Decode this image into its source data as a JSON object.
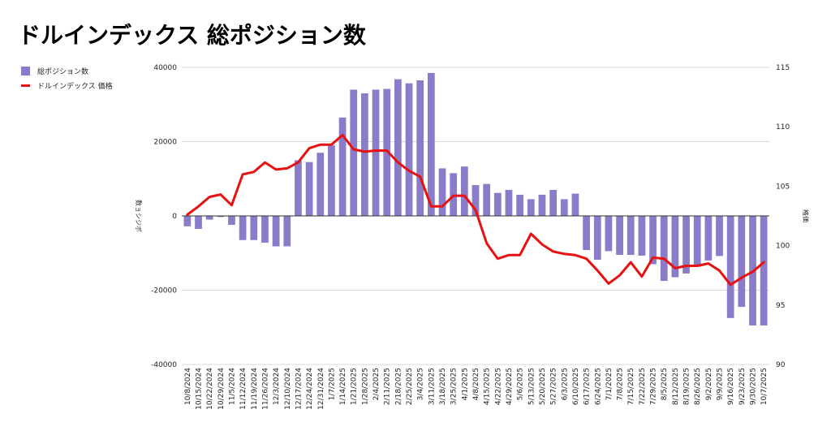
{
  "title": "ドルインデックス 総ポジション数",
  "colors": {
    "bar": "#8a7cc8",
    "line": "#e81010",
    "grid": "#d9d9d9"
  },
  "chart_data": {
    "type": "bar+line",
    "title": "ドルインデックス 総ポジション数",
    "legend_position": "top-left",
    "grid": true,
    "categories": [
      "10/8/2024",
      "10/15/2024",
      "10/22/2024",
      "10/29/2024",
      "11/5/2024",
      "11/12/2024",
      "11/19/2024",
      "11/26/2024",
      "12/3/2024",
      "12/10/2024",
      "12/17/2024",
      "12/24/2024",
      "12/31/2024",
      "1/7/2025",
      "1/14/2025",
      "1/21/2025",
      "1/28/2025",
      "2/4/2025",
      "2/11/2025",
      "2/18/2025",
      "2/25/2025",
      "3/4/2025",
      "3/11/2025",
      "3/18/2025",
      "3/25/2025",
      "4/1/2025",
      "4/8/2025",
      "4/15/2025",
      "4/22/2025",
      "4/29/2025",
      "5/6/2025",
      "5/13/2025",
      "5/20/2025",
      "5/27/2025",
      "6/3/2025",
      "6/10/2025",
      "6/17/2025",
      "6/24/2025",
      "7/1/2025",
      "7/8/2025",
      "7/15/2025",
      "7/22/2025",
      "7/29/2025",
      "8/5/2025",
      "8/12/2025",
      "8/19/2025",
      "8/26/2025",
      "9/2/2025",
      "9/9/2025",
      "9/16/2025",
      "9/23/2025",
      "9/30/2025",
      "10/7/2025"
    ],
    "left_axis": {
      "label": "数ョシジポ",
      "ylim": [
        -40000,
        40000
      ],
      "ticks": [
        "40000",
        "20000",
        "0",
        "-20000",
        "-40000"
      ],
      "tick_values": [
        40000,
        20000,
        0,
        -20000,
        -40000
      ]
    },
    "right_axis": {
      "label": "格価",
      "ylim": [
        90,
        115
      ],
      "ticks": [
        "115",
        "110",
        "105",
        "100",
        "95",
        "90"
      ],
      "tick_values": [
        115,
        110,
        105,
        100,
        95,
        90
      ]
    },
    "series": [
      {
        "name": "総ポジション数",
        "type": "bar",
        "axis": "left",
        "values": [
          -2800,
          -3500,
          -1000,
          -300,
          -2400,
          -6500,
          -6500,
          -7200,
          -8200,
          -8200,
          15000,
          14500,
          17000,
          19000,
          26500,
          34000,
          33000,
          34000,
          34200,
          36800,
          35700,
          36500,
          38500,
          12800,
          11500,
          13300,
          8300,
          8600,
          6200,
          7000,
          5700,
          4500,
          5700,
          7000,
          4500,
          6000,
          -9200,
          -11800,
          -9500,
          -10500,
          -10500,
          -10700,
          -13000,
          -17500,
          -16500,
          -15500,
          -13700,
          -12000,
          -10800,
          -27500,
          -24500,
          -29500,
          -29500
        ]
      },
      {
        "name": "ドルインデックス 価格",
        "type": "line",
        "axis": "right",
        "values": [
          102.6,
          103.3,
          104.1,
          104.3,
          103.4,
          106.0,
          106.2,
          107.0,
          106.4,
          106.5,
          107.0,
          108.2,
          108.5,
          108.5,
          109.3,
          108.1,
          107.9,
          108.0,
          108.0,
          107.0,
          106.3,
          105.8,
          103.3,
          103.3,
          104.2,
          104.2,
          103.0,
          100.2,
          98.9,
          99.2,
          99.2,
          101.0,
          100.1,
          99.5,
          99.3,
          99.2,
          98.9,
          97.9,
          96.8,
          97.5,
          98.6,
          97.4,
          99.0,
          98.9,
          98.1,
          98.3,
          98.3,
          98.5,
          97.9,
          96.7,
          97.3,
          97.8,
          98.6
        ]
      }
    ]
  }
}
